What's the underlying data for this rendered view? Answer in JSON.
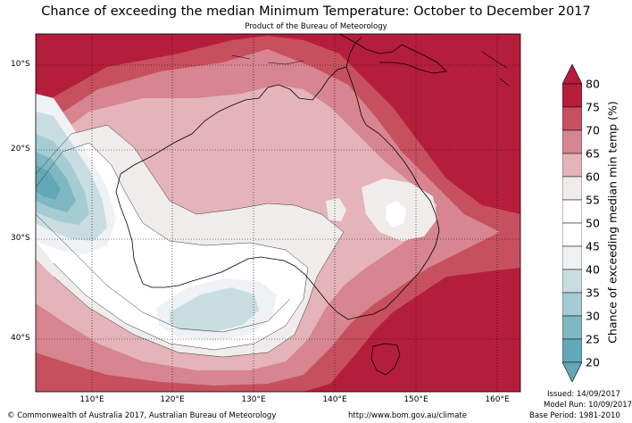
{
  "title": "Chance of exceeding the median Minimum Temperature: October to December 2017",
  "subtitle": "Product of the Bureau of Meteorology",
  "map": {
    "lat_labels": [
      "10°S",
      "20°S",
      "30°S",
      "40°S"
    ],
    "lon_labels": [
      "110°E",
      "120°E",
      "130°E",
      "140°E",
      "150°E",
      "160°E"
    ]
  },
  "colorbar": {
    "label": "Chance of exceeding median min temp (%)",
    "ticks": [
      "80",
      "75",
      "70",
      "65",
      "60",
      "55",
      "50",
      "45",
      "40",
      "35",
      "30",
      "25",
      "20"
    ],
    "colors": [
      "#b51e3b",
      "#c7505f",
      "#d78590",
      "#e4b4ba",
      "#f1ecec",
      "#ffffff",
      "#ffffff",
      "#eef2f4",
      "#c9dde1",
      "#a5ccd3",
      "#7fb7c3",
      "#63a8b8"
    ]
  },
  "footer": {
    "copyright": "© Commonwealth of Australia 2017, Australian Bureau of Meteorology",
    "url": "http://www.bom.gov.au/climate",
    "issued": "Issued: 14/09/2017",
    "model_run": "Model Run: 10/09/2017",
    "base_period": "Base Period: 1981-2010"
  }
}
